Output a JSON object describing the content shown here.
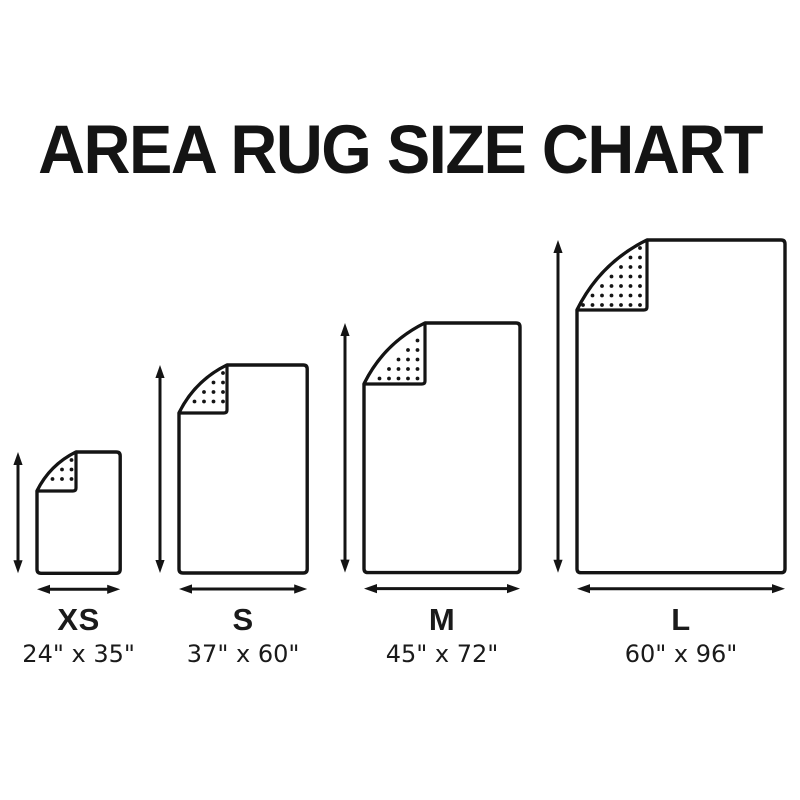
{
  "title": "AREA RUG SIZE CHART",
  "colors": {
    "ink": "#141414",
    "background": "#ffffff",
    "rug_fill": "#ffffff"
  },
  "rugs": [
    {
      "label": "XS",
      "dimensions": "24\" x 35\"",
      "width_in": 24,
      "height_in": 35
    },
    {
      "label": "S",
      "dimensions": "37\" x 60\"",
      "width_in": 37,
      "height_in": 60
    },
    {
      "label": "M",
      "dimensions": "45\" x 72\"",
      "width_in": 45,
      "height_in": 72
    },
    {
      "label": "L",
      "dimensions": "60\" x 96\"",
      "width_in": 60,
      "height_in": 96
    }
  ]
}
